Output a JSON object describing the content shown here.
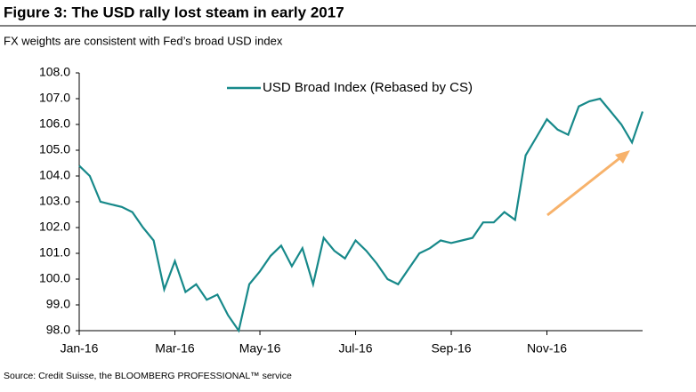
{
  "chart_data": {
    "type": "line",
    "title": "Figure 3: The USD rally lost steam in early 2017",
    "subtitle": "FX weights are consistent with Fed’s broad USD index",
    "source": "Source: Credit Suisse, the BLOOMBERG PROFESSIONAL™ service",
    "categories": [
      "Jan-16",
      null,
      null,
      null,
      null,
      null,
      null,
      null,
      null,
      "Mar-16",
      null,
      null,
      null,
      null,
      null,
      null,
      null,
      "May-16",
      null,
      null,
      null,
      null,
      null,
      null,
      null,
      null,
      "Jul-16",
      null,
      null,
      null,
      null,
      null,
      null,
      null,
      null,
      "Sep-16",
      null,
      null,
      null,
      null,
      null,
      null,
      null,
      null,
      "Nov-16",
      null,
      null,
      null,
      null,
      null,
      null,
      null,
      null,
      null
    ],
    "series": [
      {
        "name": "USD Broad Index (Rebased  by CS)",
        "color": "#17898a",
        "values": [
          104.4,
          104.0,
          103.0,
          102.9,
          102.8,
          102.6,
          102.0,
          101.5,
          99.6,
          100.7,
          99.5,
          99.8,
          99.2,
          99.4,
          98.6,
          98.0,
          99.8,
          100.3,
          100.9,
          101.3,
          100.5,
          101.2,
          99.8,
          101.6,
          101.1,
          100.8,
          101.5,
          101.1,
          100.6,
          100.0,
          99.8,
          100.4,
          101.0,
          101.2,
          101.5,
          101.4,
          101.5,
          101.6,
          102.2,
          102.2,
          102.6,
          102.3,
          104.8,
          105.5,
          106.2,
          105.8,
          105.6,
          106.7,
          106.9,
          107.0,
          106.5,
          106.0,
          105.3,
          106.5
        ]
      }
    ],
    "ylim": [
      98,
      108
    ],
    "yticks": [
      {
        "value": 98,
        "label": "98.0"
      },
      {
        "value": 99,
        "label": "99.0"
      },
      {
        "value": 100,
        "label": "100.0"
      },
      {
        "value": 101,
        "label": "101.0"
      },
      {
        "value": 102,
        "label": "102.0"
      },
      {
        "value": 103,
        "label": "103.0"
      },
      {
        "value": 104,
        "label": "104.0"
      },
      {
        "value": 105,
        "label": "105.0"
      },
      {
        "value": 106,
        "label": "106.0"
      },
      {
        "value": 107,
        "label": "107.0"
      },
      {
        "value": 108,
        "label": "108.0"
      }
    ],
    "grid": false,
    "legend": "upper center"
  }
}
